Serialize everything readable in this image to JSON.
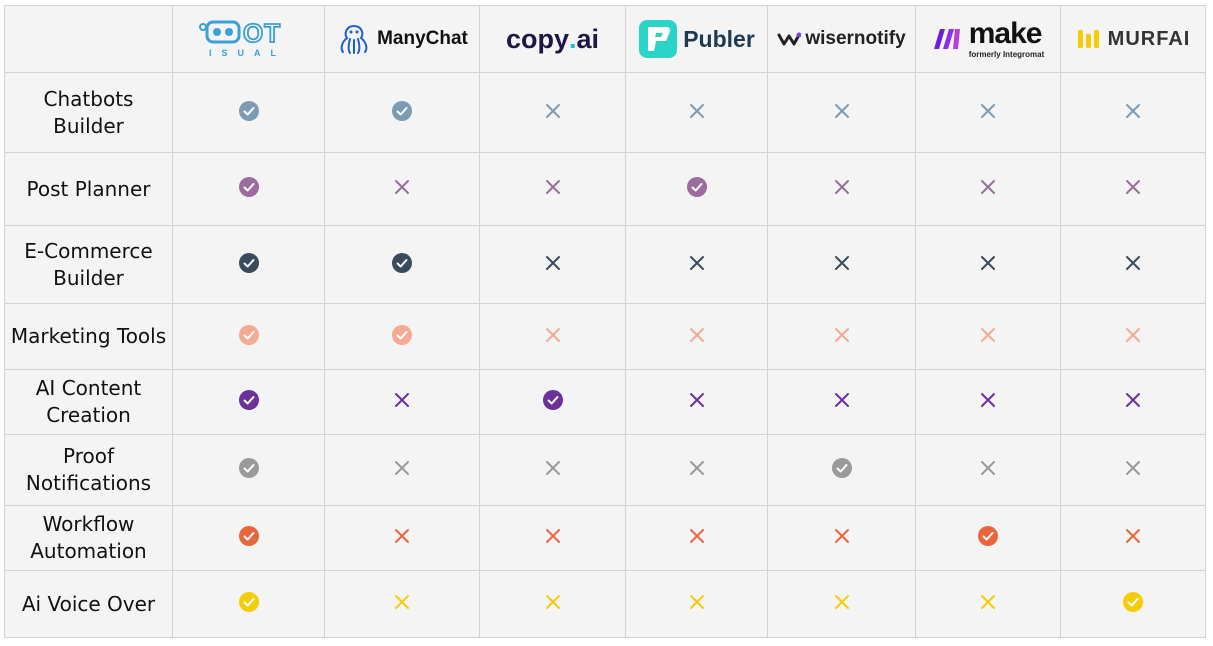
{
  "vendors": [
    {
      "name": "BOT VISUAL",
      "top": "OT",
      "sub": "ISUAL"
    },
    {
      "name": "ManyChat"
    },
    {
      "name": "copy.ai",
      "part1": "copy",
      "dot": ".",
      "part2": "ai"
    },
    {
      "name": "Publer"
    },
    {
      "name": "wisernotify"
    },
    {
      "name": "make",
      "sub": "formerly Integromat"
    },
    {
      "name": "MURF AI",
      "part1": "MURF",
      "part2": "AI"
    }
  ],
  "rows": [
    {
      "label": "Chatbots Builder",
      "label_lines": [
        "Chatbots",
        "Builder"
      ],
      "color": "#7b9cb4",
      "values": [
        true,
        true,
        false,
        false,
        false,
        false,
        false
      ]
    },
    {
      "label": "Post Planner",
      "label_lines": [
        "Post Planner"
      ],
      "color": "#9a6d9e",
      "values": [
        true,
        false,
        false,
        true,
        false,
        false,
        false
      ]
    },
    {
      "label": "E-Commerce Builder",
      "label_lines": [
        "E-Commerce",
        "Builder"
      ],
      "color": "#394b5d",
      "values": [
        true,
        true,
        false,
        false,
        false,
        false,
        false
      ]
    },
    {
      "label": "Marketing Tools",
      "label_lines": [
        "Marketing Tools"
      ],
      "color": "#f3ab93",
      "values": [
        true,
        true,
        false,
        false,
        false,
        false,
        false
      ]
    },
    {
      "label": "AI Content Creation",
      "label_lines": [
        "AI Content",
        "Creation"
      ],
      "color": "#6c3198",
      "values": [
        true,
        false,
        true,
        false,
        false,
        false,
        false
      ]
    },
    {
      "label": "Proof Notifications",
      "label_lines": [
        "Proof",
        "Notifications"
      ],
      "color": "#9a9a9a",
      "values": [
        true,
        false,
        false,
        false,
        true,
        false,
        false
      ]
    },
    {
      "label": "Workflow Automation",
      "label_lines": [
        "Workflow",
        "Automation"
      ],
      "color": "#e9663d",
      "values": [
        true,
        false,
        false,
        false,
        false,
        true,
        false
      ]
    },
    {
      "label": "Ai Voice Over",
      "label_lines": [
        "Ai Voice Over"
      ],
      "color": "#f5cc0a",
      "values": [
        true,
        false,
        false,
        false,
        false,
        false,
        true
      ]
    }
  ]
}
